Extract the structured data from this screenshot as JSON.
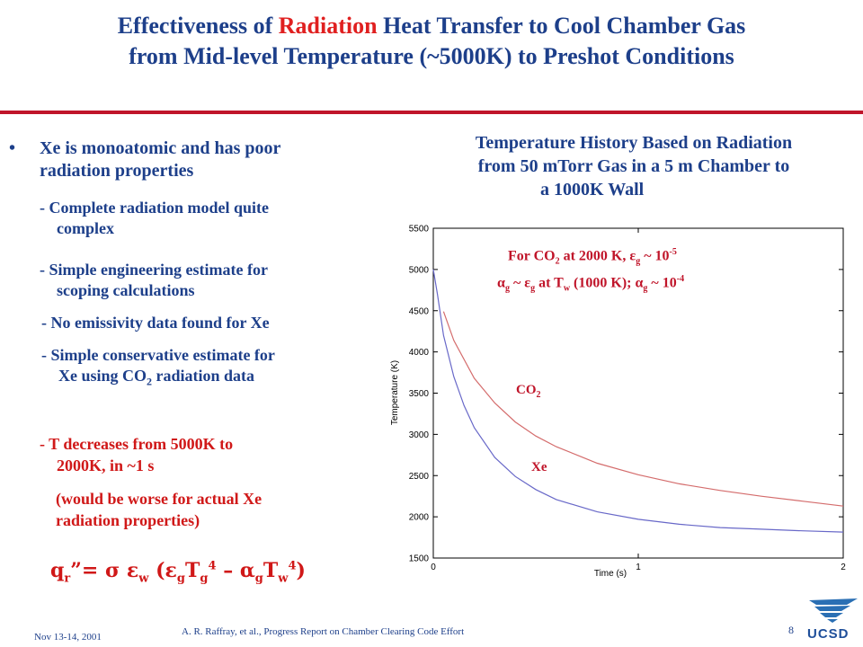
{
  "slide": {
    "title_line1_pre": "Effectiveness of ",
    "title_line1_highlight": "Radiation",
    "title_line1_post": " Heat Transfer to Cool Chamber Gas",
    "title_line2": "from Mid-level Temperature (~5000K) to Preshot Conditions",
    "bullet_symbol": "•",
    "bullet_line1": "Xe is monoatomic and has poor",
    "bullet_line2": "radiation properties",
    "sub1_line1": "-  Complete radiation model quite",
    "sub1_line2": "complex",
    "sub2_line1": "-  Simple engineering estimate for",
    "sub2_line2": "scoping calculations",
    "sub3_line1": "-  No emissivity data found for Xe",
    "sub4_line1": "-  Simple conservative estimate for",
    "sub4_line2_pre": "Xe using CO",
    "sub4_line2_sub": "2",
    "sub4_line2_post": " radiation data",
    "red1_line1": "-   T decreases from 5000K to",
    "red1_line2": "2000K, in ~1 s",
    "red2_line1": "(would be worse for actual Xe",
    "red2_line2": "radiation properties)",
    "footer_date": "Nov 13-14, 2001",
    "footer_credit": "A. R. Raffray, et al., Progress Report on Chamber Clearing Code Effort",
    "page_number": "8",
    "logo_text": "UCSD"
  },
  "chart_data": {
    "type": "line",
    "title": "Temperature History Based on Radiation from 50 mTorr Gas in a 5 m Chamber to a 1000K Wall",
    "title_line1": "Temperature History Based on Radiation",
    "title_line2": "from 50 mTorr Gas in a 5 m Chamber to",
    "title_line3": "a 1000K Wall",
    "xlabel": "Time (s)",
    "ylabel": "Temperature (K)",
    "xlim": [
      0,
      2
    ],
    "ylim": [
      1500,
      5500
    ],
    "x_ticks": [
      "0",
      "1",
      "2"
    ],
    "y_ticks": [
      "1500",
      "2000",
      "2500",
      "3000",
      "3500",
      "4000",
      "4500",
      "5000",
      "5500"
    ],
    "series": [
      {
        "name": "CO2",
        "label_main": "CO",
        "label_sub": "2",
        "color": "#d46c6c",
        "x": [
          0.05,
          0.1,
          0.2,
          0.3,
          0.4,
          0.5,
          0.6,
          0.8,
          1.0,
          1.2,
          1.4,
          1.6,
          1.8,
          2.0
        ],
        "y": [
          4490,
          4140,
          3680,
          3380,
          3150,
          2980,
          2850,
          2650,
          2510,
          2400,
          2320,
          2250,
          2190,
          2130
        ]
      },
      {
        "name": "Xe",
        "label_main": "Xe",
        "label_sub": "",
        "color": "#6868c8",
        "x": [
          0.0,
          0.02,
          0.05,
          0.1,
          0.15,
          0.2,
          0.3,
          0.4,
          0.5,
          0.6,
          0.8,
          1.0,
          1.2,
          1.4,
          1.6,
          1.8,
          2.0
        ],
        "y": [
          5000,
          4700,
          4200,
          3700,
          3350,
          3080,
          2720,
          2490,
          2330,
          2210,
          2060,
          1970,
          1910,
          1870,
          1850,
          1830,
          1815
        ]
      }
    ],
    "annotations": {
      "line1_pre": "For CO",
      "line1_sub": "2",
      "line1_mid": " at 2000 K, ε",
      "line1_sub2": "g",
      "line1_post": "  ~ 10",
      "line1_sup": "-5",
      "line2_a": "α",
      "line2_sub_a": "g",
      "line2_b": " ~ ε",
      "line2_sub_b": "g",
      "line2_c": " at T",
      "line2_sub_c": "w",
      "line2_d": " (1000 K); α",
      "line2_sub_d": "g",
      "line2_e": "  ~ 10",
      "line2_sup": "-4"
    }
  },
  "formula": {
    "q": "q",
    "q_sub": "r",
    "eq": "”=  σ  ε",
    "eps_sub": "w",
    "open": " (ε",
    "g1_sub": "g",
    "T1": "T",
    "T1_sub": "g",
    "T1_sup": "4",
    "minus": " – α",
    "g2_sub": "g",
    "T2": "T",
    "T2_sub": "w",
    "T2_sup": "4",
    "close": ")"
  },
  "colors": {
    "title_blue": "#1d3f8a",
    "highlight_red": "#e02020",
    "rule_red": "#c0152a",
    "body_red": "#d01818"
  }
}
